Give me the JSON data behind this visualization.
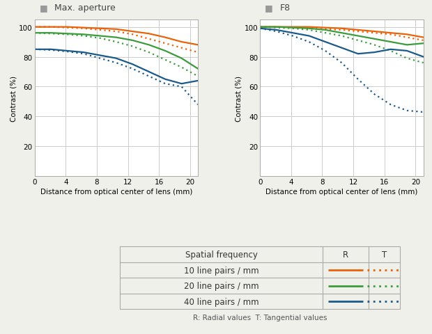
{
  "title_left": "Max. aperture",
  "title_right": "F8",
  "xlabel": "Distance from optical center of lens (mm)",
  "ylabel": "Contrast (%)",
  "xlim": [
    0,
    21
  ],
  "ylim": [
    0,
    105
  ],
  "xticks": [
    0,
    4,
    8,
    12,
    16,
    20
  ],
  "yticks": [
    20,
    40,
    60,
    80,
    100
  ],
  "bg_color": "#f0f0eb",
  "plot_bg": "#ffffff",
  "grid_color": "#cccccc",
  "color_10lp": "#e8630a",
  "color_20lp": "#3a9c3a",
  "color_40lp": "#1a5a8a",
  "legend_note": "R: Radial values  T: Tangential values",
  "legend_rows": [
    "10 line pairs / mm",
    "20 line pairs / mm",
    "40 line pairs / mm"
  ],
  "legend_header_col1": "Spatial frequency",
  "legend_header_col2": "R",
  "legend_header_col3": "T",
  "left_10R": [
    100,
    100,
    100,
    99.5,
    99,
    98.5,
    97,
    95.5,
    93,
    90,
    88
  ],
  "left_10T": [
    100,
    100,
    99.5,
    99,
    98,
    97,
    95,
    92,
    89,
    86,
    83
  ],
  "left_20R": [
    96,
    96,
    95.5,
    95,
    94,
    93,
    91,
    88,
    84,
    79,
    72
  ],
  "left_20T": [
    96,
    95.5,
    95,
    94,
    92.5,
    90,
    87,
    83,
    78,
    73,
    67
  ],
  "left_40R": [
    85,
    85,
    84,
    83,
    81,
    79,
    75,
    70,
    65,
    62,
    64
  ],
  "left_40T": [
    85,
    84.5,
    83.5,
    82,
    79,
    76,
    72,
    67,
    62,
    60,
    48
  ],
  "right_10R": [
    100,
    100,
    100,
    100,
    99.5,
    99,
    98,
    97,
    96,
    95,
    93
  ],
  "right_10T": [
    100,
    100,
    99.5,
    99,
    98.5,
    98,
    97,
    96,
    95,
    93,
    91
  ],
  "right_20R": [
    100,
    100,
    99.5,
    99,
    98,
    96,
    94,
    92,
    90,
    88,
    89
  ],
  "right_20T": [
    100,
    99.5,
    99,
    98,
    96,
    94,
    91,
    88,
    84,
    79,
    76
  ],
  "right_40R": [
    99,
    98,
    96,
    94,
    90,
    86,
    82,
    83,
    85,
    84,
    80
  ],
  "right_40T": [
    99,
    97,
    94,
    90,
    84,
    76,
    65,
    55,
    48,
    44,
    43
  ]
}
